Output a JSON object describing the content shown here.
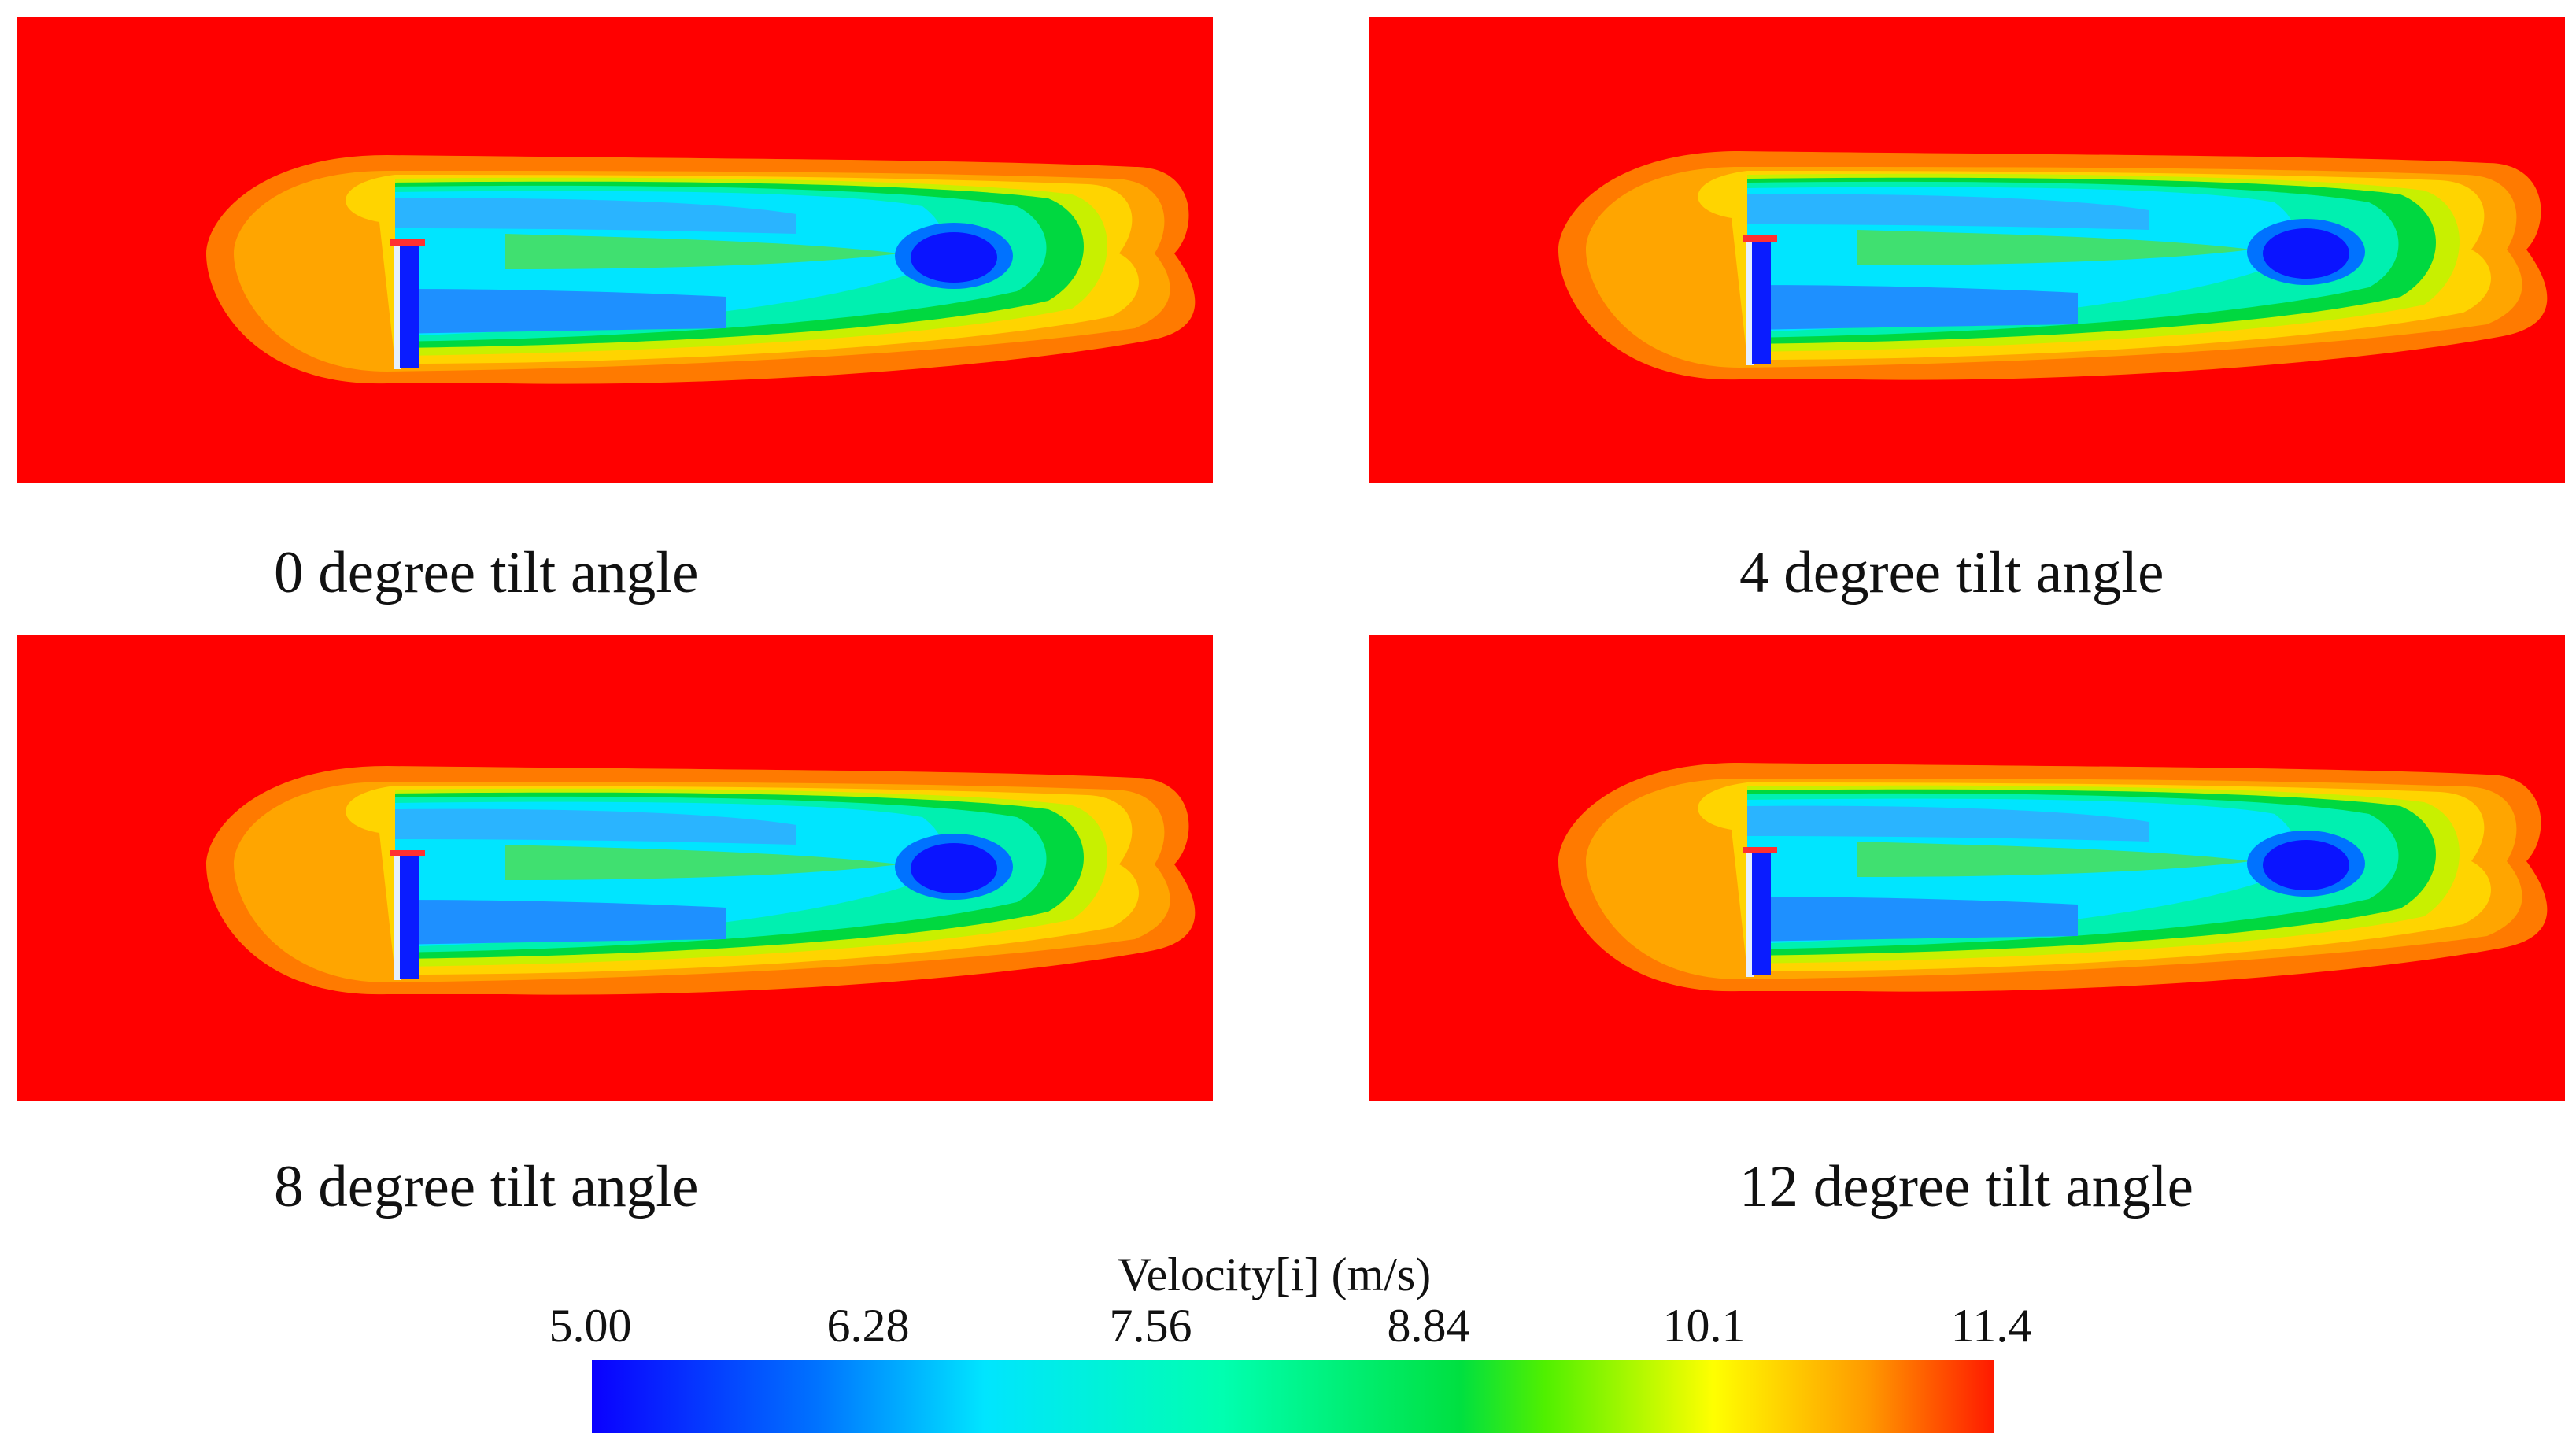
{
  "panels": [
    {
      "caption": "0 degree tilt angle",
      "tilt_deg": 0
    },
    {
      "caption": "4 degree tilt angle",
      "tilt_deg": 4
    },
    {
      "caption": "8 degree tilt angle",
      "tilt_deg": 8
    },
    {
      "caption": "12 degree tilt angle",
      "tilt_deg": 12
    }
  ],
  "legend": {
    "title": "Velocity[i] (m/s)",
    "ticks": [
      "5.00",
      "6.28",
      "7.56",
      "8.84",
      "10.1",
      "11.4"
    ]
  },
  "colors": {
    "free_stream": "#ff0000",
    "low": "#0a00ff",
    "mid": "#00e040",
    "high": "#ff1a00"
  }
}
